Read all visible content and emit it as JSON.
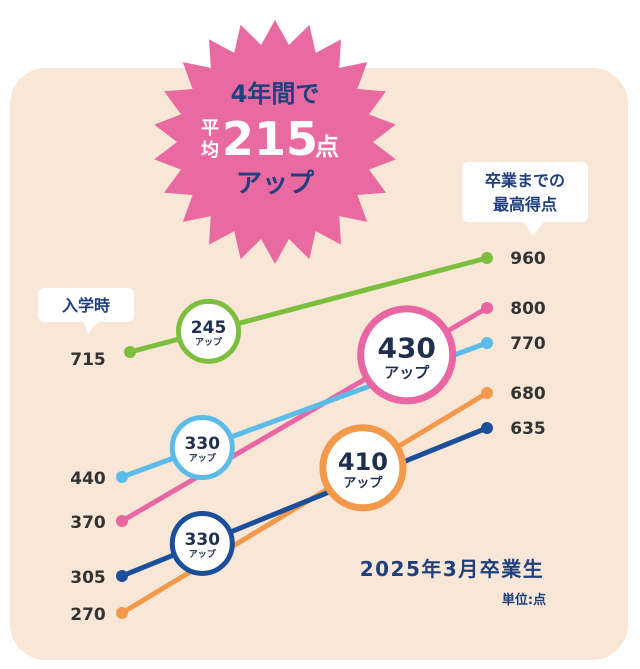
{
  "burst": {
    "line1": "4年間で",
    "line2_prefix_top": "平",
    "line2_prefix_bottom": "均",
    "line2_number": "215",
    "line2_suffix": "点",
    "line3": "アップ"
  },
  "callout_left": "入学時",
  "callout_right": [
    "卒業までの",
    "最高得点"
  ],
  "footer_title": "2025年3月卒業生",
  "footer_unit": "単位:点",
  "colors": {
    "background": "#f8e6d7",
    "burst": "#e86aa0",
    "navy": "#1f3f7f"
  },
  "chart_data": {
    "type": "line",
    "series": [
      {
        "start": 715,
        "end": 960,
        "gain": "245",
        "gain_label": "アップ",
        "color": "#7cbf3e"
      },
      {
        "start": 370,
        "end": 800,
        "gain": "430",
        "gain_label": "アップ",
        "color": "#e966a4"
      },
      {
        "start": 440,
        "end": 770,
        "gain": "330",
        "gain_label": "アップ",
        "color": "#5bbce8"
      },
      {
        "start": 270,
        "end": 680,
        "gain": "410",
        "gain_label": "アップ",
        "color": "#f3994a"
      },
      {
        "start": 305,
        "end": 635,
        "gain": "330",
        "gain_label": "アップ",
        "color": "#1b4e9b"
      }
    ]
  }
}
